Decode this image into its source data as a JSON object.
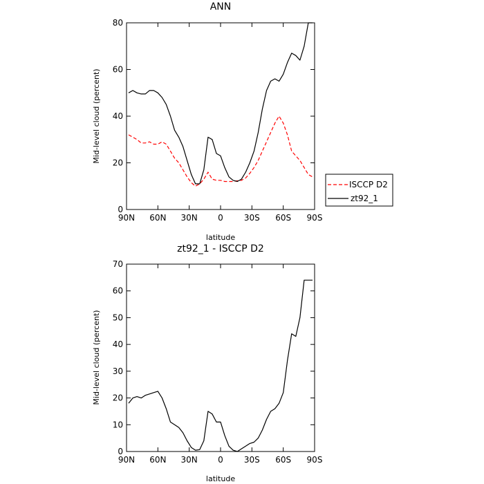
{
  "chart_data": [
    {
      "type": "line",
      "title": "ANN",
      "xlabel": "latitude",
      "ylabel": "Mid-level cloud (percent)",
      "xlim": [
        90,
        -90
      ],
      "ylim": [
        0,
        80
      ],
      "xticks": [
        90,
        60,
        30,
        0,
        -30,
        -60,
        -90
      ],
      "xtick_labels": [
        "90N",
        "60N",
        "30N",
        "0",
        "30S",
        "60S",
        "90S"
      ],
      "yticks": [
        0,
        20,
        40,
        60,
        80
      ],
      "ytick_labels": [
        "0",
        "20",
        "40",
        "60",
        "80"
      ],
      "legend": {
        "placement": "right",
        "items": [
          "ISCCP D2",
          "zt92_1"
        ]
      },
      "series": [
        {
          "name": "ISCCP D2",
          "color": "#ff0000",
          "dash": "dashed",
          "x": [
            88,
            84,
            80,
            76,
            72,
            68,
            64,
            60,
            56,
            52,
            48,
            44,
            40,
            36,
            32,
            28,
            24,
            20,
            16,
            12,
            8,
            4,
            0,
            -4,
            -8,
            -12,
            -16,
            -20,
            -24,
            -28,
            -32,
            -36,
            -40,
            -44,
            -48,
            -52,
            -56,
            -60,
            -64,
            -68,
            -72,
            -76,
            -80,
            -84,
            -88
          ],
          "values": [
            32,
            31,
            30,
            28.5,
            28.5,
            29,
            28,
            28,
            29,
            28,
            25,
            22,
            20,
            17,
            14,
            11.5,
            10,
            11,
            13,
            16,
            13,
            12.5,
            12.5,
            12,
            12,
            12,
            12.3,
            12.5,
            13.5,
            15.5,
            18,
            21,
            25,
            29,
            33,
            37,
            40,
            37,
            32,
            25,
            23,
            21,
            18,
            15,
            14
          ]
        },
        {
          "name": "zt92_1",
          "color": "#000000",
          "dash": "solid",
          "x": [
            88,
            84,
            80,
            76,
            72,
            68,
            64,
            60,
            56,
            52,
            48,
            44,
            40,
            36,
            32,
            28,
            24,
            20,
            16,
            12,
            8,
            4,
            0,
            -4,
            -8,
            -12,
            -16,
            -20,
            -24,
            -28,
            -32,
            -36,
            -40,
            -44,
            -48,
            -52,
            -56,
            -60,
            -64,
            -68,
            -72,
            -76,
            -80,
            -84,
            -88
          ],
          "values": [
            50,
            51,
            50,
            49.5,
            49.5,
            51,
            51,
            50,
            48,
            45,
            40,
            34,
            31,
            27,
            21,
            15,
            11,
            11,
            17,
            31,
            30,
            24,
            23,
            18,
            14,
            12.5,
            12,
            13,
            16,
            20,
            25,
            33,
            43,
            51,
            55,
            56,
            55,
            58,
            63,
            67,
            66,
            64,
            70,
            80,
            80
          ]
        }
      ]
    },
    {
      "type": "line",
      "title": "zt92_1 - ISCCP D2",
      "xlabel": "latitude",
      "ylabel": "Mid-level cloud (percent)",
      "xlim": [
        90,
        -90
      ],
      "ylim": [
        0,
        70
      ],
      "xticks": [
        90,
        60,
        30,
        0,
        -30,
        -60,
        -90
      ],
      "xtick_labels": [
        "90N",
        "60N",
        "30N",
        "0",
        "30S",
        "60S",
        "90S"
      ],
      "yticks": [
        0,
        10,
        20,
        30,
        40,
        50,
        60,
        70
      ],
      "ytick_labels": [
        "0",
        "10",
        "20",
        "30",
        "40",
        "50",
        "60",
        "70"
      ],
      "series": [
        {
          "color": "#000000",
          "dash": "solid",
          "x": [
            88,
            84,
            80,
            76,
            72,
            68,
            64,
            60,
            56,
            52,
            48,
            44,
            40,
            36,
            32,
            28,
            24,
            20,
            16,
            12,
            8,
            4,
            0,
            -4,
            -8,
            -12,
            -16,
            -20,
            -24,
            -28,
            -32,
            -36,
            -40,
            -44,
            -48,
            -52,
            -56,
            -60,
            -64,
            -68,
            -72,
            -76,
            -80,
            -84,
            -88
          ],
          "values": [
            18,
            20,
            20.5,
            20,
            21,
            21.5,
            22,
            22.5,
            20,
            16,
            11,
            10,
            9,
            7,
            4,
            1.5,
            0.5,
            0.7,
            4,
            15,
            14,
            11,
            11,
            6,
            2,
            0.5,
            0,
            1,
            2,
            3,
            3.5,
            5,
            8,
            12,
            15,
            16,
            18,
            22,
            34,
            44,
            43,
            50,
            64,
            64,
            64
          ]
        }
      ]
    }
  ]
}
